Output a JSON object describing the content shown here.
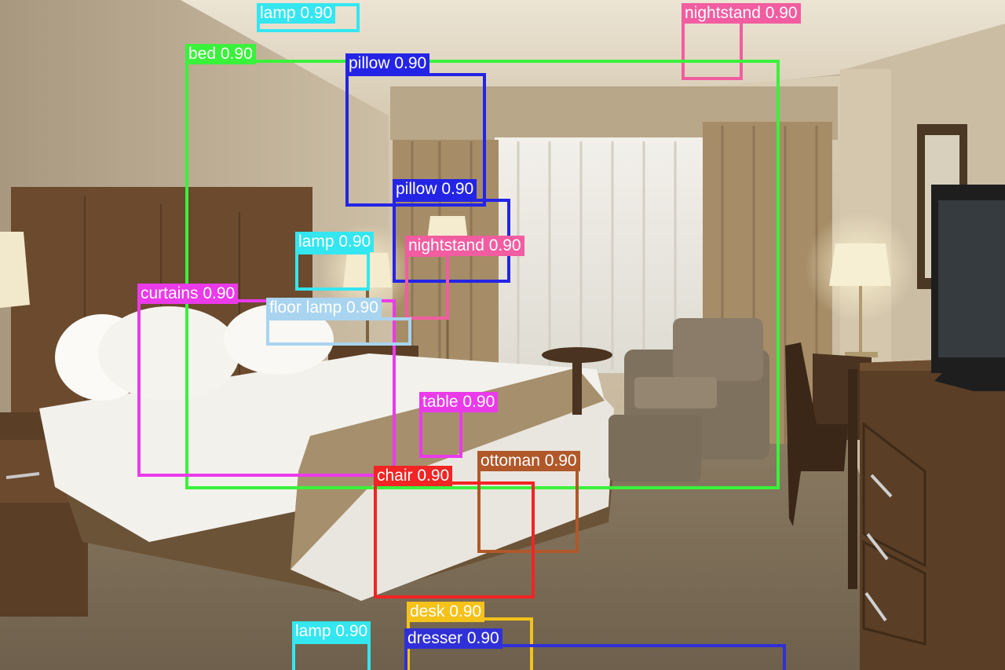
{
  "detections": [
    {
      "label": "lamp 0.90",
      "color": "#33e6f0"
    },
    {
      "label": "nightstand 0.90",
      "color": "#f25ca0"
    },
    {
      "label": "bed 0.90",
      "color": "#39f23a"
    },
    {
      "label": "pillow 0.90",
      "color": "#2424e6"
    },
    {
      "label": "pillow 0.90",
      "color": "#2424e6"
    },
    {
      "label": "lamp 0.90",
      "color": "#33e6f0"
    },
    {
      "label": "nightstand 0.90",
      "color": "#f25ca0"
    },
    {
      "label": "curtains 0.90",
      "color": "#ea3aea"
    },
    {
      "label": "floor lamp 0.90",
      "color": "#a8d4f0"
    },
    {
      "label": "table 0.90",
      "color": "#ea3aea"
    },
    {
      "label": "ottoman 0.90",
      "color": "#b0582a"
    },
    {
      "label": "chair 0.90",
      "color": "#f22424"
    },
    {
      "label": "desk 0.90",
      "color": "#f5c21a"
    },
    {
      "label": "lamp 0.90",
      "color": "#33e6f0"
    },
    {
      "label": "dresser 0.90",
      "color": "#3030d8"
    }
  ]
}
